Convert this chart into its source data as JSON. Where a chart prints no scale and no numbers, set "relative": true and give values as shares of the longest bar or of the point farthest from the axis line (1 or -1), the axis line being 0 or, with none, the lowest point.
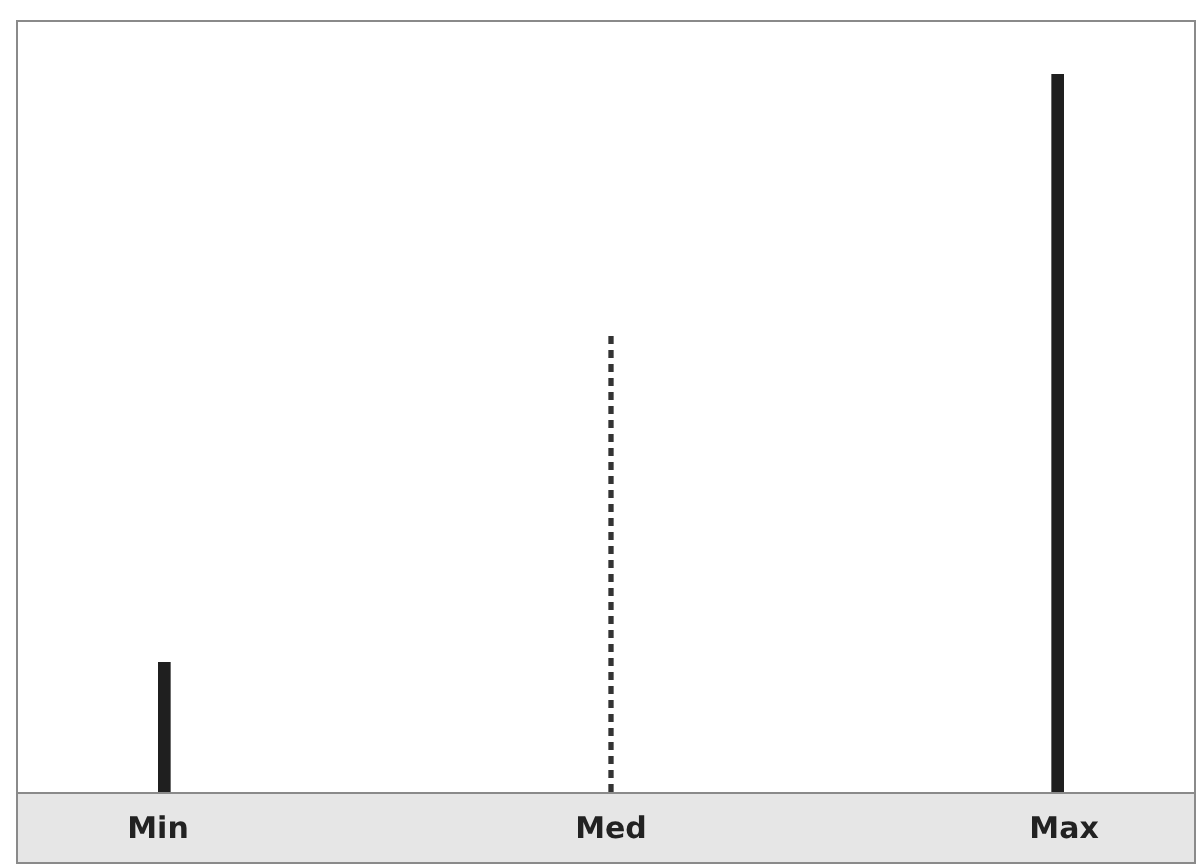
{
  "chart_data": {
    "type": "bar",
    "relative": true,
    "categories": [
      "Min",
      "Med",
      "Max"
    ],
    "grid": false,
    "legend": false,
    "series": [
      {
        "color": "#1f1f1f",
        "values": [
          0.18,
          null,
          1
        ]
      },
      {
        "type": "bar",
        "color": "#333333",
        "values": [
          null,
          0.64,
          null
        ],
        "line_style": "dashed"
      }
    ]
  }
}
